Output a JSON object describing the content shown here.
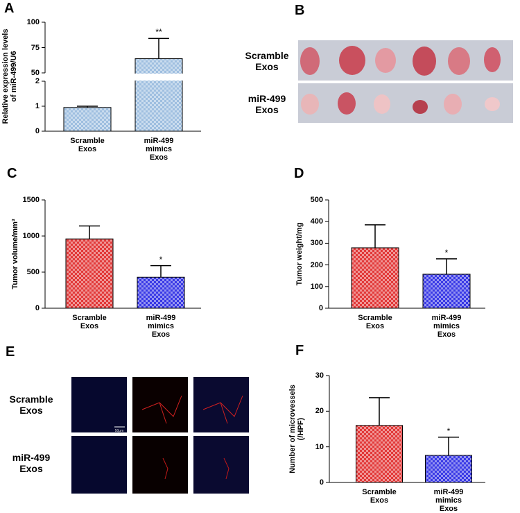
{
  "chart_data": [
    {
      "panel": "A",
      "type": "bar",
      "ylabel": "Relative expression levels\nof miR-499/U6",
      "categories": [
        "Scramble\nExos",
        "miR-499\nmimics\nExos"
      ],
      "values": [
        0.95,
        64
      ],
      "errors": [
        0.05,
        20
      ],
      "significance": [
        null,
        "**"
      ],
      "colors": [
        "#9fbfe0",
        "#9fbfe0"
      ],
      "ylim": [
        0,
        100
      ],
      "axis_break": [
        2,
        50
      ],
      "yticks": [
        0,
        1,
        2,
        50,
        75,
        100
      ]
    },
    {
      "panel": "C",
      "type": "bar",
      "ylabel": "Tumor volume/mm³",
      "categories": [
        "Scramble\nExos",
        "miR-499\nmimics\nExos"
      ],
      "values": [
        960,
        430
      ],
      "errors": [
        180,
        160
      ],
      "significance": [
        null,
        "*"
      ],
      "colors": [
        "#e23a3a",
        "#3a3ae6"
      ],
      "ylim": [
        0,
        1500
      ],
      "yticks": [
        0,
        500,
        1000,
        1500
      ]
    },
    {
      "panel": "D",
      "type": "bar",
      "ylabel": "Tumor weight/mg",
      "categories": [
        "Scramble\nExos",
        "miR-499\nmimics\nExos"
      ],
      "values": [
        279,
        157
      ],
      "errors": [
        106,
        71
      ],
      "significance": [
        null,
        "*"
      ],
      "colors": [
        "#e23a3a",
        "#3a3ae6"
      ],
      "ylim": [
        0,
        500
      ],
      "yticks": [
        0,
        100,
        200,
        300,
        400,
        500
      ]
    },
    {
      "panel": "F",
      "type": "bar",
      "ylabel": "Number of microvessels\n(/HPF)",
      "categories": [
        "Scramble\nExos",
        "miR-499\nmimics\nExos"
      ],
      "values": [
        16,
        7.6
      ],
      "errors": [
        7.8,
        5.1
      ],
      "significance": [
        null,
        "*"
      ],
      "colors": [
        "#e23a3a",
        "#3a3ae6"
      ],
      "ylim": [
        0,
        30
      ],
      "yticks": [
        0,
        10,
        20,
        30
      ]
    }
  ],
  "figures": [
    {
      "panel": "B",
      "rows": [
        "Scramble\nExos",
        "miR-499\nExos"
      ]
    },
    {
      "panel": "E",
      "rows": [
        "Scramble\nExos",
        "miR-499\nExos"
      ],
      "scale_bar": "50μm"
    }
  ]
}
